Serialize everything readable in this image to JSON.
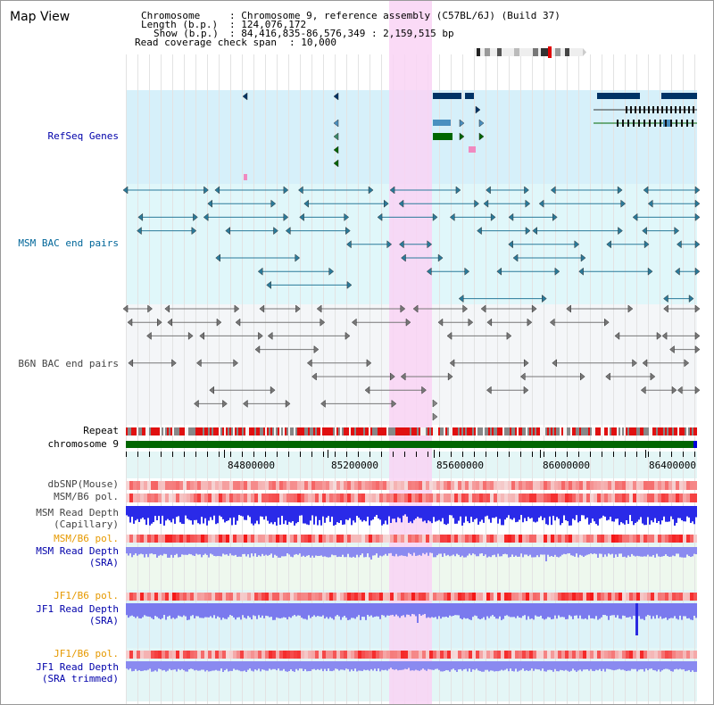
{
  "app": {
    "title": "Map View"
  },
  "info": {
    "chromosome_label": "Chromosome",
    "chromosome_value": ": Chromosome 9, reference assembly (C57BL/6J) (Build 37)",
    "length_label": "Length (b.p.)",
    "length_value": ": 124,076,172",
    "show_label": "Show (b.p.)",
    "show_value": ": 84,416,835-86,576,349 : 2,159,515 bp",
    "coverage_label": "Read coverage check span",
    "coverage_value": ": 10,000"
  },
  "tracks": {
    "refseq": "RefSeq Genes",
    "msm_bac": "MSM BAC end pairs",
    "b6n_bac": "B6N BAC end pairs",
    "repeat": "Repeat",
    "chromosome": "chromosome 9",
    "dbsnp": "dbSNP(Mouse)",
    "msm_b6_pol_1": "MSM/B6 pol.",
    "msm_read_depth_cap_1": "MSM Read Depth",
    "msm_read_depth_cap_2": "(Capillary)",
    "msm_b6_pol_2": "MSM/B6 pol.",
    "msm_read_depth_sra_1": "MSM Read Depth",
    "msm_read_depth_sra_2": "(SRA)",
    "jf1_b6_pol_1": "JF1/B6 pol.",
    "jf1_read_depth_sra_1": "JF1 Read Depth",
    "jf1_read_depth_sra_2": "(SRA)",
    "jf1_b6_pol_2": "JF1/B6 pol.",
    "jf1_read_depth_tr_1": "JF1 Read Depth",
    "jf1_read_depth_tr_2": "(SRA trimmed)"
  },
  "axis": {
    "ticks": [
      "84800000",
      "85200000",
      "85600000",
      "86000000",
      "86400000"
    ]
  },
  "colors": {
    "highlight": "#f9d4f4",
    "refseq_bg": "#d6f0fa",
    "msm_bg": "#e0f7fa",
    "b6n_bg": "#f4f6f8",
    "chromosome_bar": "#006600",
    "depth_blue": "#2a2ae8",
    "depth_light": "#8c8cf0"
  }
}
